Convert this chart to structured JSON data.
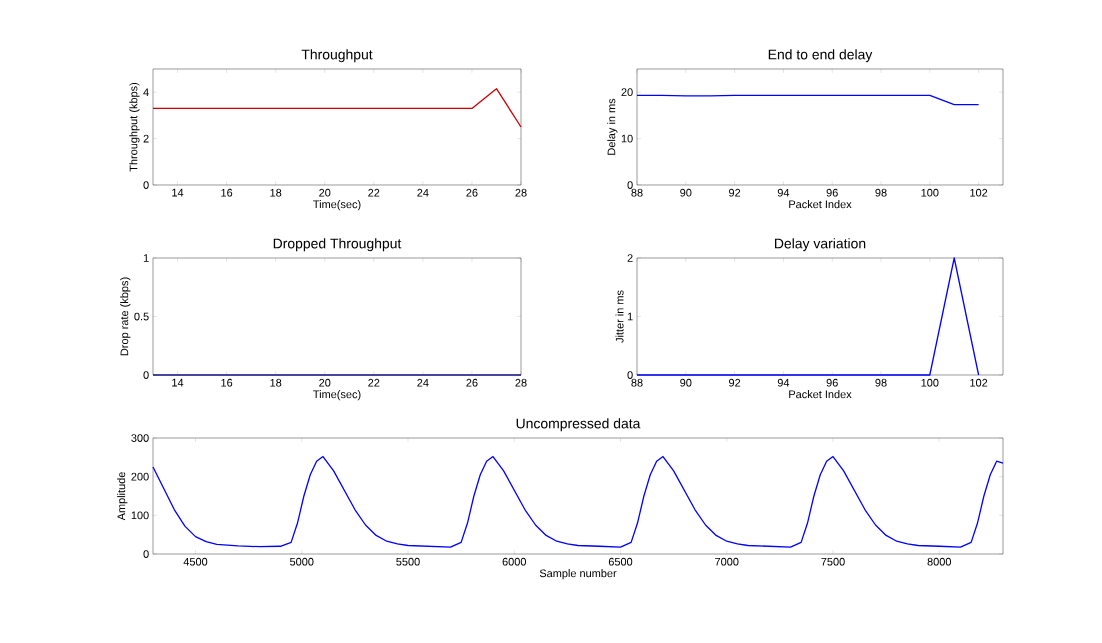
{
  "chart_data": [
    {
      "type": "line",
      "title": "Throughput",
      "xlabel": "Time(sec)",
      "ylabel": "Throughput (kbps)",
      "color": "#cc0000",
      "x": [
        13,
        14,
        15,
        16,
        17,
        18,
        19,
        20,
        21,
        22,
        23,
        24,
        25,
        26,
        27,
        28
      ],
      "values": [
        3.3,
        3.3,
        3.3,
        3.3,
        3.3,
        3.3,
        3.3,
        3.3,
        3.3,
        3.3,
        3.3,
        3.3,
        3.3,
        3.3,
        4.15,
        2.5
      ],
      "xlim": [
        13,
        28
      ],
      "ylim": [
        0,
        5
      ],
      "xticks": [
        14,
        16,
        18,
        20,
        22,
        24,
        26,
        28
      ],
      "yticks": [
        0,
        2,
        4
      ]
    },
    {
      "type": "line",
      "title": "End to end delay",
      "xlabel": "Packet Index",
      "ylabel": "Delay in ms",
      "color": "#0000ff",
      "x": [
        88,
        89,
        90,
        91,
        92,
        93,
        94,
        95,
        96,
        97,
        98,
        99,
        100,
        101,
        102
      ],
      "values": [
        19.3,
        19.3,
        19.2,
        19.2,
        19.3,
        19.3,
        19.3,
        19.3,
        19.3,
        19.3,
        19.3,
        19.3,
        19.3,
        17.3,
        17.3
      ],
      "xlim": [
        88,
        103
      ],
      "ylim": [
        0,
        25
      ],
      "xticks": [
        88,
        90,
        92,
        94,
        96,
        98,
        100,
        102
      ],
      "yticks": [
        0,
        10,
        20
      ]
    },
    {
      "type": "line",
      "title": "Dropped Throughput",
      "xlabel": "Time(sec)",
      "ylabel": "Drop rate (kbps)",
      "color": "#1a1a8c",
      "x": [
        13,
        14,
        15,
        16,
        17,
        18,
        19,
        20,
        21,
        22,
        23,
        24,
        25,
        26,
        27,
        28
      ],
      "values": [
        0,
        0,
        0,
        0,
        0,
        0,
        0,
        0,
        0,
        0,
        0,
        0,
        0,
        0,
        0,
        0
      ],
      "xlim": [
        13,
        28
      ],
      "ylim": [
        0,
        1
      ],
      "xticks": [
        14,
        16,
        18,
        20,
        22,
        24,
        26,
        28
      ],
      "yticks": [
        0,
        0.5,
        1
      ]
    },
    {
      "type": "line",
      "title": "Delay variation",
      "xlabel": "Packet Index",
      "ylabel": "Jitter in ms",
      "color": "#0000ff",
      "x": [
        88,
        89,
        90,
        91,
        92,
        93,
        94,
        95,
        96,
        97,
        98,
        99,
        100,
        101,
        102
      ],
      "values": [
        0,
        0,
        0,
        0,
        0,
        0,
        0,
        0,
        0,
        0,
        0,
        0,
        0,
        2,
        0
      ],
      "xlim": [
        88,
        103
      ],
      "ylim": [
        0,
        2
      ],
      "xticks": [
        88,
        90,
        92,
        94,
        96,
        98,
        100,
        102
      ],
      "yticks": [
        0,
        1,
        2
      ]
    },
    {
      "type": "line",
      "title": "Uncompressed data",
      "xlabel": "Sample number",
      "ylabel": "Amplitude",
      "color": "#0000ff",
      "x": [
        4300,
        4350,
        4400,
        4450,
        4500,
        4550,
        4600,
        4700,
        4800,
        4900,
        4950,
        4980,
        5010,
        5040,
        5070,
        5100,
        5150,
        5200,
        5250,
        5300,
        5350,
        5400,
        5450,
        5500,
        5600,
        5700,
        5750,
        5780,
        5810,
        5840,
        5870,
        5900,
        5950,
        6000,
        6050,
        6100,
        6150,
        6200,
        6250,
        6300,
        6400,
        6500,
        6550,
        6580,
        6610,
        6640,
        6670,
        6700,
        6750,
        6800,
        6850,
        6900,
        6950,
        7000,
        7050,
        7100,
        7200,
        7300,
        7350,
        7380,
        7410,
        7440,
        7470,
        7500,
        7550,
        7600,
        7650,
        7700,
        7750,
        7800,
        7850,
        7900,
        8000,
        8100,
        8150,
        8180,
        8210,
        8240,
        8270,
        8300
      ],
      "values": [
        225,
        170,
        115,
        72,
        45,
        32,
        25,
        21,
        19,
        20,
        30,
        80,
        150,
        205,
        240,
        252,
        215,
        165,
        115,
        75,
        48,
        33,
        26,
        22,
        20,
        18,
        30,
        80,
        150,
        205,
        240,
        252,
        215,
        165,
        115,
        75,
        48,
        33,
        26,
        22,
        20,
        18,
        30,
        80,
        150,
        205,
        240,
        252,
        215,
        165,
        115,
        75,
        48,
        33,
        26,
        22,
        20,
        18,
        30,
        80,
        150,
        205,
        240,
        252,
        215,
        165,
        115,
        75,
        48,
        33,
        26,
        22,
        20,
        18,
        30,
        80,
        150,
        205,
        240,
        235
      ],
      "xlim": [
        4300,
        8300
      ],
      "ylim": [
        0,
        300
      ],
      "xticks": [
        4500,
        5000,
        5500,
        6000,
        6500,
        7000,
        7500,
        8000
      ],
      "yticks": [
        0,
        100,
        200,
        300
      ]
    }
  ]
}
